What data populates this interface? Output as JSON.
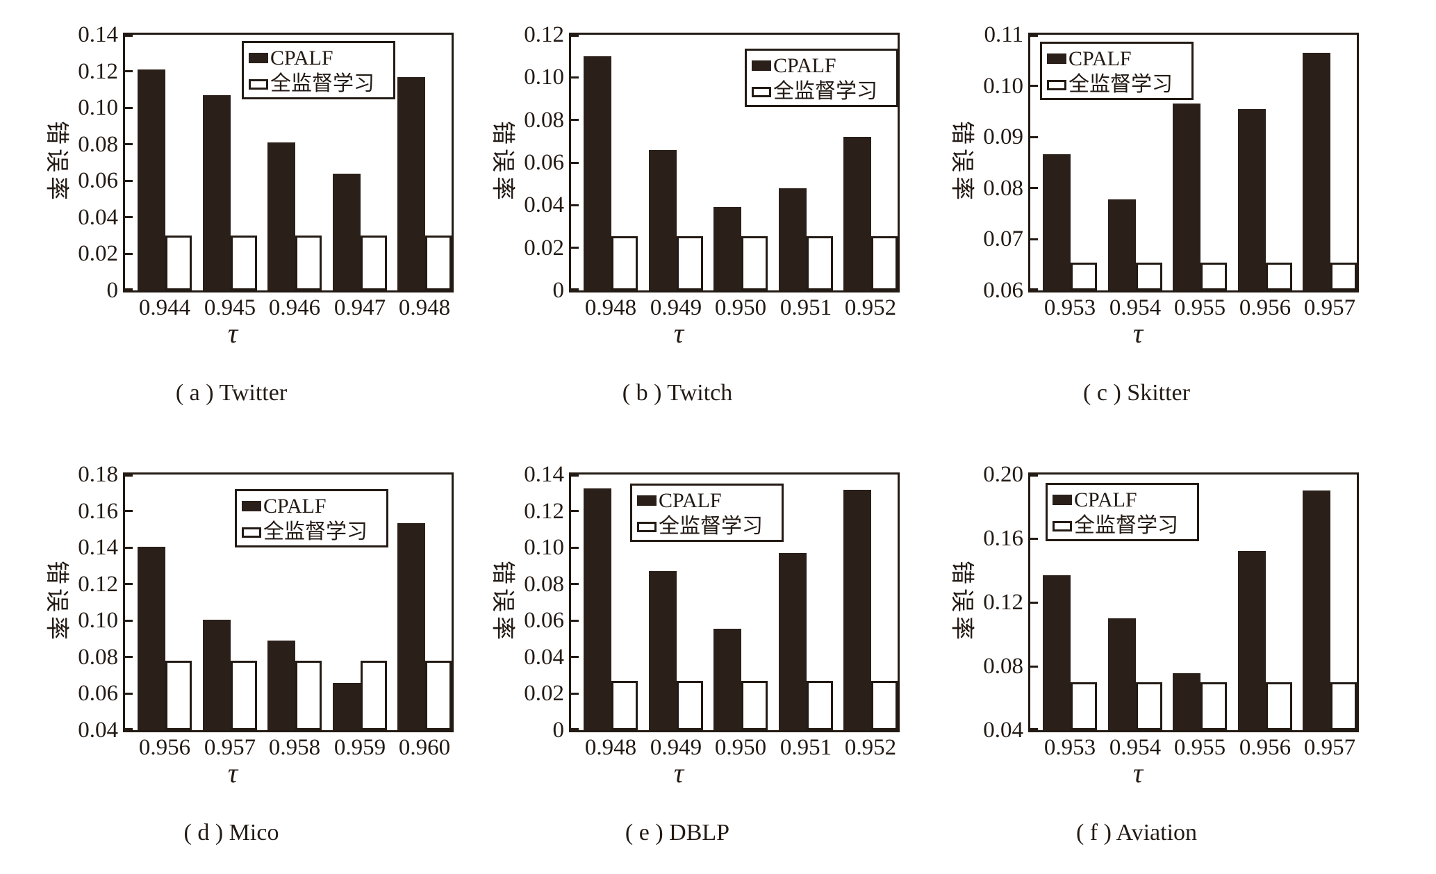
{
  "figure": {
    "ylabel": "错误率",
    "xlabel": "τ",
    "series": [
      {
        "name": "CPALF",
        "swatch": "filled"
      },
      {
        "name": "全监督学习",
        "swatch": "outline"
      }
    ],
    "colors": {
      "bar_fill": "#2a1f19",
      "ink": "#231a14",
      "background": "#ffffff"
    }
  },
  "chart_data": [
    {
      "id": "a",
      "type": "bar",
      "dataset": "Twitter",
      "caption": "( a ) Twitter",
      "xlabel": "τ",
      "ylabel": "错误率",
      "categories": [
        "0.944",
        "0.945",
        "0.946",
        "0.947",
        "0.948"
      ],
      "series": [
        {
          "name": "CPALF",
          "values": [
            0.121,
            0.107,
            0.081,
            0.064,
            0.117
          ]
        },
        {
          "name": "全监督学习",
          "values": [
            0.03,
            0.03,
            0.03,
            0.03,
            0.03
          ]
        }
      ],
      "ylim": [
        0,
        0.14
      ],
      "yticks": [
        "0",
        "0.02",
        "0.04",
        "0.06",
        "0.08",
        "0.10",
        "0.12",
        "0.14"
      ],
      "grid": false,
      "legend_position": "upper-right",
      "legend_offset": [
        168,
        9
      ]
    },
    {
      "id": "b",
      "type": "bar",
      "dataset": "Twitch",
      "caption": "( b ) Twitch",
      "xlabel": "τ",
      "ylabel": "错误率",
      "categories": [
        "0.948",
        "0.949",
        "0.950",
        "0.951",
        "0.952"
      ],
      "series": [
        {
          "name": "CPALF",
          "values": [
            0.11,
            0.066,
            0.039,
            0.048,
            0.072
          ]
        },
        {
          "name": "全监督学习",
          "values": [
            0.0255,
            0.0255,
            0.0255,
            0.0255,
            0.0255
          ]
        }
      ],
      "ylim": [
        0,
        0.12
      ],
      "yticks": [
        "0",
        "0.02",
        "0.04",
        "0.06",
        "0.08",
        "0.10",
        "0.12"
      ],
      "grid": false,
      "legend_position": "upper-right",
      "legend_offset": [
        250,
        20
      ]
    },
    {
      "id": "c",
      "type": "bar",
      "dataset": "Skitter",
      "caption": "( c ) Skitter",
      "xlabel": "τ",
      "ylabel": "错误率",
      "categories": [
        "0.953",
        "0.954",
        "0.955",
        "0.956",
        "0.957"
      ],
      "series": [
        {
          "name": "CPALF",
          "values": [
            0.0867,
            0.0778,
            0.0965,
            0.0955,
            0.1065
          ]
        },
        {
          "name": "全监督学习",
          "values": [
            0.0655,
            0.0655,
            0.0655,
            0.0655,
            0.0655
          ]
        }
      ],
      "ylim": [
        0.06,
        0.11
      ],
      "yticks": [
        "0.06",
        "0.07",
        "0.08",
        "0.09",
        "0.10",
        "0.11"
      ],
      "grid": false,
      "legend_position": "upper-left",
      "legend_offset": [
        14,
        10
      ]
    },
    {
      "id": "d",
      "type": "bar",
      "dataset": "Mico",
      "caption": "( d ) Mico",
      "xlabel": "τ",
      "ylabel": "错误率",
      "categories": [
        "0.956",
        "0.957",
        "0.958",
        "0.959",
        "0.960"
      ],
      "series": [
        {
          "name": "CPALF",
          "values": [
            0.1405,
            0.1005,
            0.089,
            0.066,
            0.1535
          ]
        },
        {
          "name": "全监督学习",
          "values": [
            0.078,
            0.078,
            0.078,
            0.078,
            0.078
          ]
        }
      ],
      "ylim": [
        0.04,
        0.18
      ],
      "yticks": [
        "0.04",
        "0.06",
        "0.08",
        "0.10",
        "0.12",
        "0.14",
        "0.16",
        "0.18"
      ],
      "grid": false,
      "legend_position": "upper-center-right",
      "legend_offset": [
        158,
        21
      ]
    },
    {
      "id": "e",
      "type": "bar",
      "dataset": "DBLP",
      "caption": "( e ) DBLP",
      "xlabel": "τ",
      "ylabel": "错误率",
      "categories": [
        "0.948",
        "0.949",
        "0.950",
        "0.951",
        "0.952"
      ],
      "series": [
        {
          "name": "CPALF",
          "values": [
            0.1325,
            0.087,
            0.0555,
            0.097,
            0.1315
          ]
        },
        {
          "name": "全监督学习",
          "values": [
            0.027,
            0.027,
            0.027,
            0.027,
            0.027
          ]
        }
      ],
      "ylim": [
        0,
        0.14
      ],
      "yticks": [
        "0",
        "0.02",
        "0.04",
        "0.06",
        "0.08",
        "0.10",
        "0.12",
        "0.14"
      ],
      "grid": false,
      "legend_position": "upper-center",
      "legend_offset": [
        85,
        13
      ]
    },
    {
      "id": "f",
      "type": "bar",
      "dataset": "Aviation",
      "caption": "( f ) Aviation",
      "xlabel": "τ",
      "ylabel": "错误率",
      "categories": [
        "0.953",
        "0.954",
        "0.955",
        "0.956",
        "0.957"
      ],
      "series": [
        {
          "name": "CPALF",
          "values": [
            0.137,
            0.11,
            0.0755,
            0.152,
            0.19
          ]
        },
        {
          "name": "全监督学习",
          "values": [
            0.07,
            0.07,
            0.07,
            0.07,
            0.07
          ]
        }
      ],
      "ylim": [
        0.04,
        0.2
      ],
      "yticks": [
        "0.04",
        "0.08",
        "0.12",
        "0.16",
        "0.20"
      ],
      "grid": false,
      "legend_position": "upper-left",
      "legend_offset": [
        22,
        12
      ]
    }
  ]
}
